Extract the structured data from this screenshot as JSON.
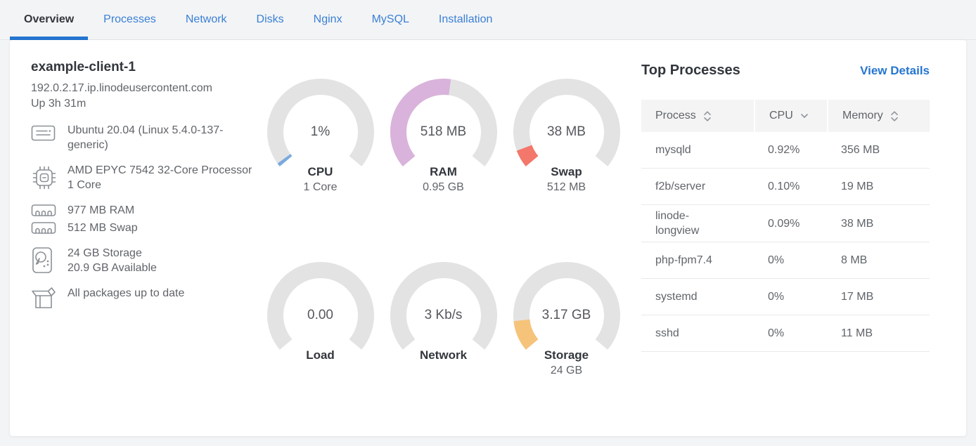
{
  "tabs": [
    {
      "label": "Overview",
      "active": true
    },
    {
      "label": "Processes",
      "active": false
    },
    {
      "label": "Network",
      "active": false
    },
    {
      "label": "Disks",
      "active": false
    },
    {
      "label": "Nginx",
      "active": false
    },
    {
      "label": "MySQL",
      "active": false
    },
    {
      "label": "Installation",
      "active": false
    }
  ],
  "host": {
    "name": "example-client-1",
    "domain": "192.0.2.17.ip.linodeusercontent.com",
    "uptime": "Up 3h 31m",
    "items": [
      {
        "icon": "os-icon",
        "compact": false,
        "lines": [
          "Ubuntu 20.04 (Linux 5.4.0-137-generic)"
        ]
      },
      {
        "icon": "cpu-icon",
        "compact": false,
        "lines": [
          "AMD EPYC 7542 32-Core Processor",
          "1 Core"
        ]
      },
      {
        "icon": "ram-icon",
        "compact": false,
        "lines": [
          "977 MB RAM"
        ]
      },
      {
        "icon": "ram-icon",
        "compact": true,
        "lines": [
          "512 MB Swap"
        ]
      },
      {
        "icon": "disk-icon",
        "compact": false,
        "lines": [
          "24 GB Storage",
          "20.9 GB Available"
        ]
      },
      {
        "icon": "package-icon",
        "compact": false,
        "lines": [
          "All packages up to date"
        ]
      }
    ]
  },
  "chart_data": {
    "type": "gauge-set",
    "track_color": "#e3e3e3",
    "arc_start_deg": 230,
    "arc_sweep_deg": 260,
    "gauges": [
      {
        "id": "cpu",
        "value": "1%",
        "label": "CPU",
        "sublabel": "1 Core",
        "fraction": 0.015,
        "color": "#7aaade"
      },
      {
        "id": "ram",
        "value": "518 MB",
        "label": "RAM",
        "sublabel": "0.95 GB",
        "fraction": 0.53,
        "color": "#d9b3db"
      },
      {
        "id": "swap",
        "value": "38 MB",
        "label": "Swap",
        "sublabel": "512 MB",
        "fraction": 0.075,
        "color": "#f4776b"
      },
      {
        "id": "load",
        "value": "0.00",
        "label": "Load",
        "sublabel": "",
        "fraction": 0,
        "color": ""
      },
      {
        "id": "network",
        "value": "3 Kb/s",
        "label": "Network",
        "sublabel": "",
        "fraction": 0,
        "color": ""
      },
      {
        "id": "storage",
        "value": "3.17 GB",
        "label": "Storage",
        "sublabel": "24 GB",
        "fraction": 0.13,
        "color": "#f6c37b"
      }
    ]
  },
  "processes": {
    "title": "Top Processes",
    "view_details": "View Details",
    "columns": [
      {
        "label": "Process",
        "sort": "both"
      },
      {
        "label": "CPU",
        "sort": "desc"
      },
      {
        "label": "Memory",
        "sort": "both"
      }
    ],
    "rows": [
      {
        "process": "mysqld",
        "cpu": "0.92%",
        "memory": "356 MB"
      },
      {
        "process": "f2b/server",
        "cpu": "0.10%",
        "memory": "19 MB"
      },
      {
        "process": "linode-longview",
        "cpu": "0.09%",
        "memory": "38 MB"
      },
      {
        "process": "php-fpm7.4",
        "cpu": "0%",
        "memory": "8 MB"
      },
      {
        "process": "systemd",
        "cpu": "0%",
        "memory": "17 MB"
      },
      {
        "process": "sshd",
        "cpu": "0%",
        "memory": "11 MB"
      }
    ]
  },
  "colors": {
    "page_background": "#f3f4f5",
    "card_background": "#ffffff",
    "accent_blue": "#2575d0",
    "tab_blue": "#3a80d6",
    "heading_text": "#32363c",
    "body_text": "#606469",
    "gauge_track": "#e3e3e3"
  }
}
